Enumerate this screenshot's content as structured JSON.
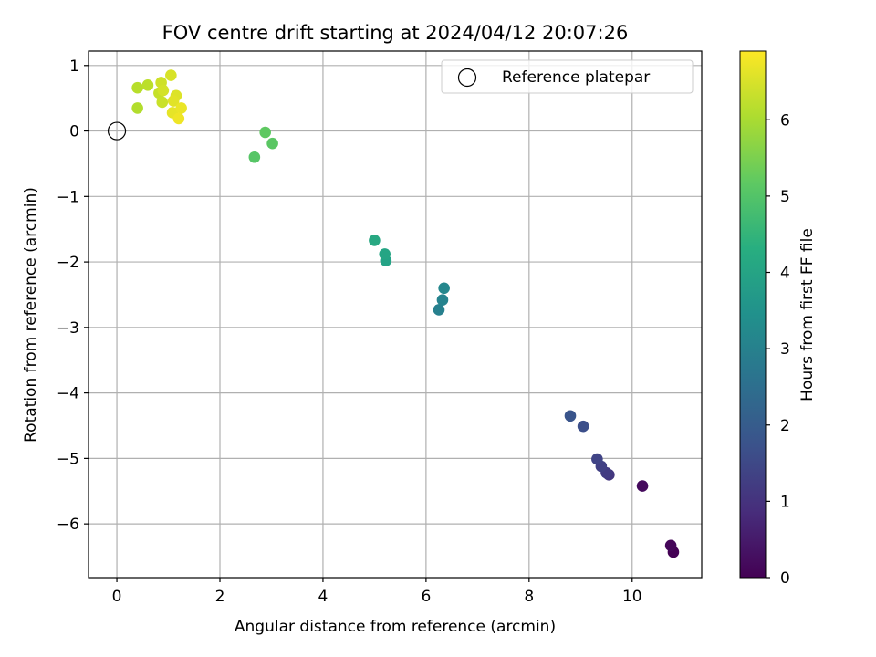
{
  "chart_data": {
    "type": "scatter",
    "title": "FOV centre drift starting at 2024/04/12 20:07:26",
    "xlabel": "Angular distance from reference (arcmin)",
    "ylabel": "Rotation from reference (arcmin)",
    "xlim": [
      -0.55,
      11.35
    ],
    "ylim": [
      -6.82,
      1.22
    ],
    "xticks": [
      0,
      2,
      4,
      6,
      8,
      10
    ],
    "yticks": [
      1,
      0,
      -1,
      -2,
      -3,
      -4,
      -5,
      -6
    ],
    "xtick_labels": [
      "0",
      "2",
      "4",
      "6",
      "8",
      "10"
    ],
    "ytick_labels": [
      "1",
      "0",
      "−1",
      "−2",
      "−3",
      "−4",
      "−5",
      "−6"
    ],
    "grid": true,
    "legend": {
      "location": "top-right",
      "entries": [
        "Reference platepar"
      ]
    },
    "reference_point": {
      "x": 0,
      "y": 0,
      "marker": "open-circle",
      "color": "#000000"
    },
    "colorbar": {
      "label": "Hours from first FF file",
      "range": [
        0,
        6.9
      ],
      "ticks": [
        0,
        1,
        2,
        3,
        4,
        5,
        6
      ],
      "tick_labels": [
        "0",
        "1",
        "2",
        "3",
        "4",
        "5",
        "6"
      ],
      "colormap": "viridis"
    },
    "points": [
      {
        "x": 10.8,
        "y": -6.43,
        "c": 0.0
      },
      {
        "x": 10.75,
        "y": -6.33,
        "c": 0.1
      },
      {
        "x": 10.2,
        "y": -5.42,
        "c": 0.2
      },
      {
        "x": 9.55,
        "y": -5.25,
        "c": 1.1
      },
      {
        "x": 9.5,
        "y": -5.22,
        "c": 1.2
      },
      {
        "x": 9.4,
        "y": -5.12,
        "c": 1.3
      },
      {
        "x": 9.32,
        "y": -5.01,
        "c": 1.4
      },
      {
        "x": 9.05,
        "y": -4.51,
        "c": 1.65
      },
      {
        "x": 8.8,
        "y": -4.35,
        "c": 1.8
      },
      {
        "x": 6.25,
        "y": -2.73,
        "c": 3.0
      },
      {
        "x": 6.32,
        "y": -2.58,
        "c": 3.1
      },
      {
        "x": 6.35,
        "y": -2.4,
        "c": 3.2
      },
      {
        "x": 5.22,
        "y": -1.98,
        "c": 4.0
      },
      {
        "x": 5.2,
        "y": -1.88,
        "c": 4.05
      },
      {
        "x": 5.0,
        "y": -1.67,
        "c": 4.15
      },
      {
        "x": 2.67,
        "y": -0.4,
        "c": 5.05
      },
      {
        "x": 3.02,
        "y": -0.19,
        "c": 5.1
      },
      {
        "x": 2.88,
        "y": -0.02,
        "c": 5.15
      },
      {
        "x": 0.4,
        "y": 0.35,
        "c": 6.1
      },
      {
        "x": 0.4,
        "y": 0.66,
        "c": 6.15
      },
      {
        "x": 0.6,
        "y": 0.7,
        "c": 6.2
      },
      {
        "x": 0.82,
        "y": 0.58,
        "c": 6.3
      },
      {
        "x": 0.88,
        "y": 0.44,
        "c": 6.35
      },
      {
        "x": 0.86,
        "y": 0.74,
        "c": 6.4
      },
      {
        "x": 0.9,
        "y": 0.62,
        "c": 6.45
      },
      {
        "x": 1.05,
        "y": 0.85,
        "c": 6.5
      },
      {
        "x": 1.15,
        "y": 0.54,
        "c": 6.55
      },
      {
        "x": 1.1,
        "y": 0.46,
        "c": 6.6
      },
      {
        "x": 1.08,
        "y": 0.28,
        "c": 6.65
      },
      {
        "x": 1.25,
        "y": 0.35,
        "c": 6.7
      },
      {
        "x": 1.2,
        "y": 0.19,
        "c": 6.75
      }
    ]
  }
}
